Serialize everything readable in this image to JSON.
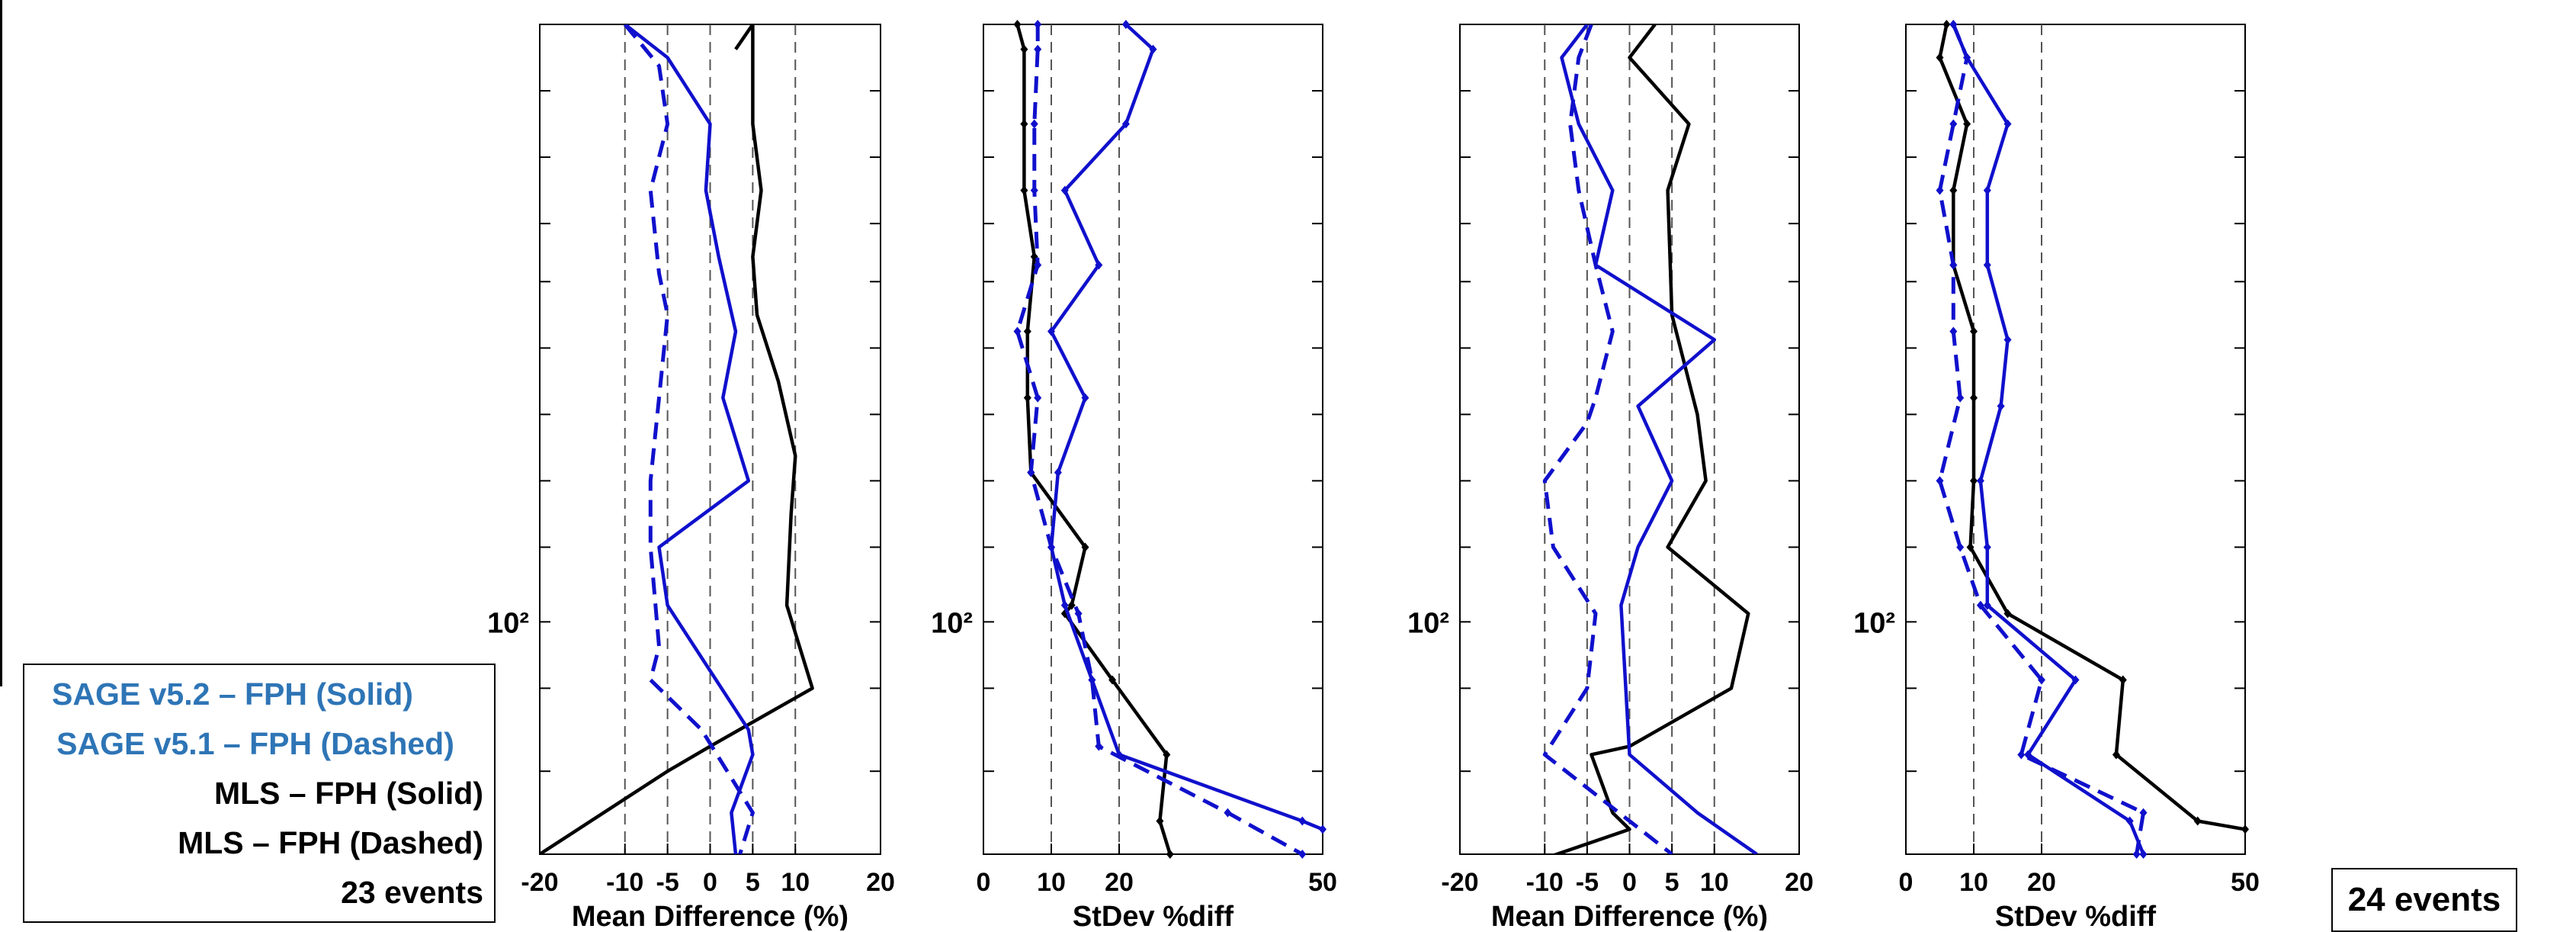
{
  "legend": {
    "entries": [
      {
        "label": "SAGE v5.2 – FPH (Solid)",
        "color": "#2E75B6"
      },
      {
        "label": "SAGE v5.1 – FPH (Dashed)",
        "color": "#2E75B6"
      },
      {
        "label": "MLS – FPH (Solid)",
        "color": "#000000"
      },
      {
        "label": "MLS – FPH  (Dashed)",
        "color": "#000000"
      },
      {
        "label": "23 events",
        "color": "#000000"
      }
    ]
  },
  "events_right": "24 events",
  "colors": {
    "sage": "#1010CC",
    "mls": "#000000",
    "grid": "#555555"
  },
  "chart_data": [
    {
      "type": "line",
      "xlabel": "Mean Difference (%)",
      "xlim": [
        -20,
        20
      ],
      "xticks": [
        -20,
        -10,
        -5,
        0,
        5,
        10,
        20
      ],
      "xtick_labels": [
        "-20",
        "-10",
        "-5",
        "0",
        "5",
        "10",
        "20"
      ],
      "dashed_refs": [
        -10,
        -5,
        0,
        5,
        10
      ],
      "ytick_label": "10²",
      "y_level_label": 0.72,
      "y_ticks": [
        0.0,
        0.08,
        0.16,
        0.24,
        0.31,
        0.39,
        0.47,
        0.55,
        0.63,
        0.72,
        0.8,
        0.9,
        1.0
      ],
      "series": [
        {
          "color": "mls",
          "dash": false,
          "markers": false,
          "points": [
            [
              3,
              0.03
            ],
            [
              5,
              0.0
            ],
            [
              5,
              0.12
            ],
            [
              6,
              0.2
            ],
            [
              5,
              0.28
            ],
            [
              5.5,
              0.35
            ],
            [
              8,
              0.43
            ],
            [
              10,
              0.52
            ],
            [
              9.5,
              0.59
            ],
            [
              9,
              0.7
            ],
            [
              12,
              0.8
            ],
            [
              0,
              0.87
            ],
            [
              -5,
              0.9
            ],
            [
              -20,
              1.0
            ]
          ]
        },
        {
          "color": "sage",
          "dash": false,
          "markers": false,
          "points": [
            [
              -10,
              0.0
            ],
            [
              -5,
              0.04
            ],
            [
              0,
              0.12
            ],
            [
              -0.5,
              0.2
            ],
            [
              1,
              0.28
            ],
            [
              3,
              0.37
            ],
            [
              1.5,
              0.45
            ],
            [
              4.5,
              0.55
            ],
            [
              -6,
              0.63
            ],
            [
              -5,
              0.7
            ],
            [
              4.5,
              0.85
            ],
            [
              5,
              0.88
            ],
            [
              2.5,
              0.95
            ],
            [
              3,
              1.0
            ]
          ]
        },
        {
          "color": "sage",
          "dash": true,
          "markers": false,
          "points": [
            [
              -10,
              0.0
            ],
            [
              -6,
              0.05
            ],
            [
              -5,
              0.12
            ],
            [
              -7,
              0.2
            ],
            [
              -6,
              0.3
            ],
            [
              -5,
              0.35
            ],
            [
              -6,
              0.45
            ],
            [
              -7,
              0.55
            ],
            [
              -7,
              0.63
            ],
            [
              -6,
              0.75
            ],
            [
              -7,
              0.79
            ],
            [
              -1,
              0.85
            ],
            [
              2,
              0.9
            ],
            [
              5,
              0.95
            ],
            [
              3.5,
              1.0
            ]
          ]
        }
      ]
    },
    {
      "type": "line",
      "xlabel": "StDev %diff",
      "xlim": [
        0,
        50
      ],
      "xticks": [
        0,
        10,
        20,
        50
      ],
      "xtick_labels": [
        "0",
        "10",
        "20",
        "50"
      ],
      "dashed_refs": [
        10,
        20
      ],
      "ytick_label": "10²",
      "y_level_label": 0.72,
      "y_ticks": [
        0.0,
        0.08,
        0.16,
        0.24,
        0.31,
        0.39,
        0.47,
        0.55,
        0.63,
        0.72,
        0.8,
        0.9,
        1.0
      ],
      "series": [
        {
          "color": "mls",
          "dash": false,
          "markers": true,
          "points": [
            [
              5,
              0.0
            ],
            [
              6,
              0.03
            ],
            [
              6,
              0.12
            ],
            [
              6,
              0.2
            ],
            [
              7.5,
              0.28
            ],
            [
              6.5,
              0.37
            ],
            [
              6.5,
              0.45
            ],
            [
              7,
              0.54
            ],
            [
              15,
              0.63
            ],
            [
              13,
              0.7
            ],
            [
              12,
              0.71
            ],
            [
              19,
              0.79
            ],
            [
              27,
              0.88
            ],
            [
              26,
              0.96
            ],
            [
              27.5,
              1.0
            ]
          ]
        },
        {
          "color": "sage",
          "dash": false,
          "markers": true,
          "points": [
            [
              21,
              0.0
            ],
            [
              25,
              0.03
            ],
            [
              21,
              0.12
            ],
            [
              12,
              0.2
            ],
            [
              17,
              0.29
            ],
            [
              10,
              0.37
            ],
            [
              15,
              0.45
            ],
            [
              11,
              0.54
            ],
            [
              10,
              0.63
            ],
            [
              12,
              0.7
            ],
            [
              16,
              0.79
            ],
            [
              20,
              0.88
            ],
            [
              47,
              0.96
            ],
            [
              50,
              0.97
            ]
          ]
        },
        {
          "color": "sage",
          "dash": true,
          "markers": true,
          "points": [
            [
              8,
              0.0
            ],
            [
              8,
              0.03
            ],
            [
              7.5,
              0.12
            ],
            [
              7.5,
              0.2
            ],
            [
              8,
              0.29
            ],
            [
              5,
              0.37
            ],
            [
              8,
              0.45
            ],
            [
              7,
              0.54
            ],
            [
              10,
              0.63
            ],
            [
              14,
              0.71
            ],
            [
              16,
              0.79
            ],
            [
              17,
              0.87
            ],
            [
              36,
              0.95
            ],
            [
              47,
              1.0
            ]
          ]
        }
      ]
    },
    {
      "type": "line",
      "xlabel": "Mean Difference (%)",
      "xlim": [
        -20,
        20
      ],
      "xticks": [
        -20,
        -10,
        -5,
        0,
        5,
        10,
        20
      ],
      "xtick_labels": [
        "-20",
        "-10",
        "-5",
        "0",
        "5",
        "10",
        "20"
      ],
      "dashed_refs": [
        -10,
        -5,
        0,
        5,
        10
      ],
      "ytick_label": "10²",
      "y_level_label": 0.72,
      "y_ticks": [
        0.0,
        0.08,
        0.16,
        0.24,
        0.31,
        0.39,
        0.47,
        0.55,
        0.63,
        0.72,
        0.8,
        0.9,
        1.0
      ],
      "series": [
        {
          "color": "mls",
          "dash": false,
          "markers": false,
          "points": [
            [
              3,
              0.0
            ],
            [
              0,
              0.04
            ],
            [
              7,
              0.12
            ],
            [
              4.5,
              0.2
            ],
            [
              5,
              0.35
            ],
            [
              8,
              0.47
            ],
            [
              9,
              0.55
            ],
            [
              4.5,
              0.63
            ],
            [
              14,
              0.71
            ],
            [
              12,
              0.8
            ],
            [
              0,
              0.87
            ],
            [
              -4.5,
              0.88
            ],
            [
              -2,
              0.95
            ],
            [
              0,
              0.97
            ],
            [
              -20,
              1.04
            ]
          ]
        },
        {
          "color": "sage",
          "dash": false,
          "markers": false,
          "points": [
            [
              -5,
              0.0
            ],
            [
              -8,
              0.04
            ],
            [
              -6,
              0.12
            ],
            [
              -2,
              0.2
            ],
            [
              -4,
              0.29
            ],
            [
              10,
              0.38
            ],
            [
              1,
              0.46
            ],
            [
              5,
              0.55
            ],
            [
              1,
              0.63
            ],
            [
              -1,
              0.7
            ],
            [
              0,
              0.88
            ],
            [
              8,
              0.95
            ],
            [
              15,
              1.0
            ]
          ]
        },
        {
          "color": "sage",
          "dash": true,
          "markers": false,
          "points": [
            [
              -4.5,
              0.0
            ],
            [
              -6,
              0.04
            ],
            [
              -7,
              0.12
            ],
            [
              -6,
              0.2
            ],
            [
              -4,
              0.29
            ],
            [
              -2,
              0.37
            ],
            [
              -4,
              0.45
            ],
            [
              -5,
              0.48
            ],
            [
              -10,
              0.55
            ],
            [
              -9,
              0.63
            ],
            [
              -4,
              0.71
            ],
            [
              -5,
              0.8
            ],
            [
              -10,
              0.88
            ],
            [
              5,
              1.0
            ]
          ]
        }
      ]
    },
    {
      "type": "line",
      "xlabel": "StDev %diff",
      "xlim": [
        0,
        50
      ],
      "xticks": [
        0,
        10,
        20,
        50
      ],
      "xtick_labels": [
        "0",
        "10",
        "20",
        "50"
      ],
      "dashed_refs": [
        10,
        20
      ],
      "ytick_label": "10²",
      "y_level_label": 0.72,
      "y_ticks": [
        0.0,
        0.08,
        0.16,
        0.24,
        0.31,
        0.39,
        0.47,
        0.55,
        0.63,
        0.72,
        0.8,
        0.9,
        1.0
      ],
      "series": [
        {
          "color": "mls",
          "dash": false,
          "markers": true,
          "points": [
            [
              6,
              0.0
            ],
            [
              5,
              0.04
            ],
            [
              9,
              0.12
            ],
            [
              7,
              0.2
            ],
            [
              7,
              0.29
            ],
            [
              10,
              0.37
            ],
            [
              10,
              0.45
            ],
            [
              10,
              0.55
            ],
            [
              9.5,
              0.63
            ],
            [
              15,
              0.71
            ],
            [
              32,
              0.79
            ],
            [
              31,
              0.88
            ],
            [
              43,
              0.96
            ],
            [
              50,
              0.97
            ]
          ]
        },
        {
          "color": "sage",
          "dash": false,
          "markers": true,
          "points": [
            [
              7,
              0.0
            ],
            [
              9,
              0.04
            ],
            [
              15,
              0.12
            ],
            [
              12,
              0.2
            ],
            [
              12,
              0.29
            ],
            [
              15,
              0.38
            ],
            [
              14,
              0.46
            ],
            [
              11,
              0.55
            ],
            [
              12,
              0.63
            ],
            [
              12,
              0.7
            ],
            [
              25,
              0.79
            ],
            [
              18,
              0.88
            ],
            [
              33,
              0.96
            ],
            [
              35,
              1.0
            ]
          ]
        },
        {
          "color": "sage",
          "dash": true,
          "markers": true,
          "points": [
            [
              7,
              0.0
            ],
            [
              9,
              0.04
            ],
            [
              7,
              0.12
            ],
            [
              5,
              0.2
            ],
            [
              7,
              0.29
            ],
            [
              7,
              0.37
            ],
            [
              8,
              0.45
            ],
            [
              5,
              0.55
            ],
            [
              8,
              0.63
            ],
            [
              11,
              0.7
            ],
            [
              20,
              0.79
            ],
            [
              17,
              0.88
            ],
            [
              35,
              0.95
            ],
            [
              34,
              1.0
            ]
          ]
        }
      ]
    }
  ]
}
